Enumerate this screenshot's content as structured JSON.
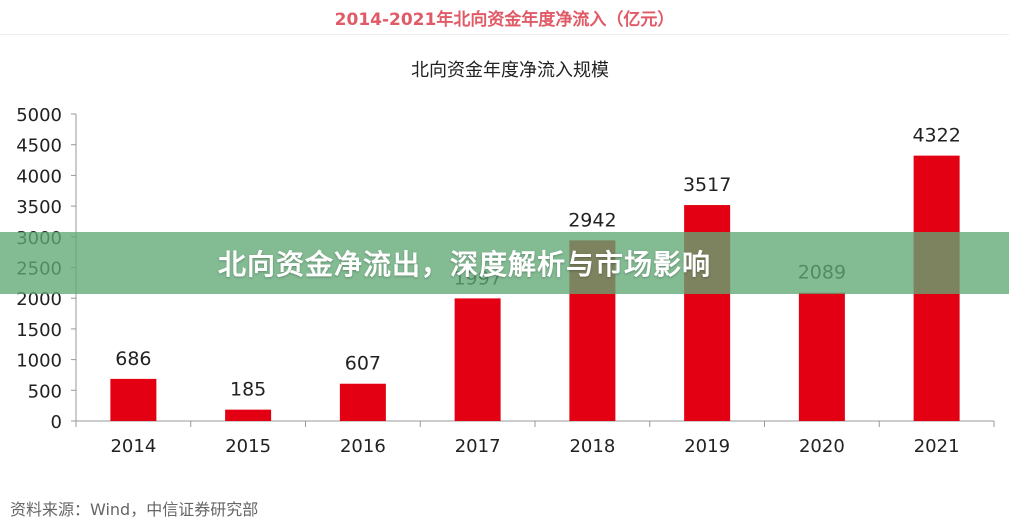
{
  "header": {
    "title": "2014-2021年北向资金年度净流入（亿元）"
  },
  "banner": {
    "text": "北向资金净流出，深度解析与市场影响"
  },
  "footer": {
    "source": "资料来源：Wind，中信证券研究部"
  },
  "colors": {
    "bar": "#e30012",
    "header": "#e05a67",
    "banner": "#60a874"
  },
  "chart_data": {
    "type": "bar",
    "title": "北向资金年度净流入规模",
    "xlabel": "",
    "ylabel": "",
    "categories": [
      "2014",
      "2015",
      "2016",
      "2017",
      "2018",
      "2019",
      "2020",
      "2021"
    ],
    "values": [
      686,
      185,
      607,
      1997,
      2942,
      3517,
      2089,
      4322
    ],
    "value_labels": [
      "686",
      "185",
      "607",
      "1997",
      "2942",
      "3517",
      "2089",
      "4322"
    ],
    "ylim": [
      0,
      5000
    ],
    "yticks": [
      0,
      500,
      1000,
      1500,
      2000,
      2500,
      3000,
      3500,
      4000,
      4500,
      5000
    ],
    "grid": false,
    "legend": "none"
  }
}
